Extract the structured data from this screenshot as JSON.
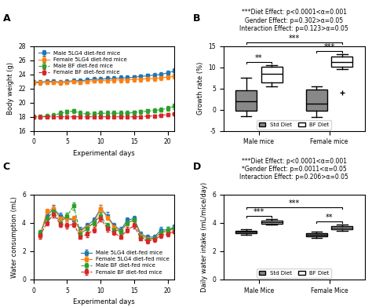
{
  "chart_data": [
    {
      "type": "line",
      "annotations": [
        {
          "text": "A"
        }
      ],
      "xlabel": "Experimental days",
      "ylabel": "Body weight (g)",
      "x": [
        0,
        1,
        2,
        3,
        4,
        5,
        6,
        7,
        8,
        9,
        10,
        11,
        12,
        13,
        14,
        15,
        16,
        17,
        18,
        19,
        20,
        21
      ],
      "series": [
        {
          "name": "Male 5LG4 diet-fed mice",
          "marker": "square",
          "line_style": "solid",
          "values": [
            22.9,
            22.9,
            23.0,
            23.0,
            22.9,
            23.0,
            23.1,
            23.1,
            23.2,
            23.3,
            23.3,
            23.4,
            23.4,
            23.5,
            23.5,
            23.6,
            23.7,
            23.8,
            23.9,
            24.0,
            24.2,
            24.5
          ],
          "errors": [
            0.3,
            0.3,
            0.3,
            0.3,
            0.3,
            0.3,
            0.3,
            0.3,
            0.3,
            0.3,
            0.3,
            0.3,
            0.3,
            0.3,
            0.3,
            0.3,
            0.3,
            0.3,
            0.3,
            0.3,
            0.3,
            0.4
          ]
        },
        {
          "name": "Female 5LG4 diet-fed mice",
          "marker": "square",
          "line_style": "solid",
          "values": [
            22.8,
            22.8,
            22.9,
            22.9,
            22.8,
            22.9,
            23.0,
            22.9,
            23.0,
            23.1,
            23.1,
            23.1,
            23.2,
            23.2,
            23.2,
            23.3,
            23.3,
            23.4,
            23.4,
            23.5,
            23.6,
            23.7
          ],
          "errors": [
            0.3,
            0.3,
            0.3,
            0.3,
            0.3,
            0.3,
            0.3,
            0.3,
            0.3,
            0.3,
            0.3,
            0.3,
            0.3,
            0.3,
            0.3,
            0.3,
            0.3,
            0.3,
            0.3,
            0.3,
            0.3,
            0.3
          ]
        },
        {
          "name": "Male BF diet-fed mice",
          "marker": "square",
          "line_style": "dashed",
          "values": [
            18.0,
            18.0,
            18.1,
            18.2,
            18.5,
            18.7,
            18.8,
            18.5,
            18.4,
            18.4,
            18.5,
            18.5,
            18.5,
            18.5,
            18.5,
            18.6,
            18.7,
            18.8,
            18.9,
            19.0,
            19.2,
            19.5
          ],
          "errors": [
            0.3,
            0.3,
            0.3,
            0.3,
            0.3,
            0.3,
            0.3,
            0.3,
            0.3,
            0.3,
            0.3,
            0.3,
            0.3,
            0.3,
            0.3,
            0.3,
            0.3,
            0.3,
            0.3,
            0.3,
            0.35,
            0.4
          ]
        },
        {
          "name": "Female BF diet-fed mice",
          "marker": "square",
          "line_style": "dashed",
          "values": [
            18.0,
            18.0,
            18.0,
            18.0,
            18.0,
            18.0,
            18.0,
            18.0,
            18.0,
            18.0,
            18.0,
            18.0,
            18.0,
            18.0,
            18.0,
            18.0,
            18.0,
            18.1,
            18.1,
            18.2,
            18.3,
            18.4
          ],
          "errors": [
            0.2,
            0.2,
            0.2,
            0.2,
            0.2,
            0.2,
            0.2,
            0.2,
            0.2,
            0.2,
            0.2,
            0.2,
            0.2,
            0.2,
            0.2,
            0.2,
            0.2,
            0.2,
            0.2,
            0.2,
            0.2,
            0.2
          ]
        }
      ],
      "xlim": [
        0,
        21
      ],
      "xticks": [
        0,
        5,
        10,
        15,
        20
      ],
      "ylim": [
        16,
        28
      ],
      "yticks": [
        16,
        18,
        20,
        22,
        24,
        26,
        28
      ],
      "legend": "upper left"
    },
    {
      "type": "box",
      "title": "***Diet Effect: p<0.0001<α=0.001\nGender Effect: p=0.302>α=0.05\nInteraction Effect: p=0.123>α=0.05",
      "ylabel": "Growth rate (%)",
      "categories": [
        "Male mice",
        "Female mice"
      ],
      "series": [
        {
          "name": "Std Diet",
          "color": "#888888",
          "boxes": [
            {
              "q1": -0.2,
              "median": 2.0,
              "q3": 4.5,
              "whislo": -1.5,
              "whishi": 7.5,
              "fliers": []
            },
            {
              "q1": -0.3,
              "median": 1.5,
              "q3": 4.8,
              "whislo": -1.8,
              "whishi": 5.5,
              "fliers": []
            }
          ]
        },
        {
          "name": "BF Diet",
          "color": "#ffffff",
          "boxes": [
            {
              "q1": 6.5,
              "median": 8.5,
              "q3": 10.2,
              "whislo": 5.5,
              "whishi": 10.5,
              "fliers": []
            },
            {
              "q1": 10.2,
              "median": 11.2,
              "q3": 12.5,
              "whislo": 9.5,
              "whishi": 13.0,
              "fliers": [
                4.0
              ]
            }
          ]
        }
      ],
      "annotations": [
        {
          "text": "B"
        },
        {
          "text": "**",
          "between": [
            {
              "category": "Male mice",
              "series": "Std Diet"
            },
            {
              "category": "Male mice",
              "series": "BF Diet"
            }
          ]
        },
        {
          "text": "***",
          "between": [
            {
              "category": "Female mice",
              "series": "Std Diet"
            },
            {
              "category": "Female mice",
              "series": "BF Diet"
            }
          ]
        },
        {
          "text": "***",
          "between": [
            {
              "category": "Male mice",
              "series": "Std Diet"
            },
            {
              "category": "Female mice",
              "series": "BF Diet"
            }
          ]
        }
      ],
      "ylim": [
        -5,
        15
      ],
      "yticks": [
        -5,
        0,
        5,
        10,
        15
      ],
      "legend": "lower center"
    },
    {
      "type": "line",
      "annotations": [
        {
          "text": "C"
        }
      ],
      "xlabel": "Experimental days",
      "ylabel": "Water consumption (mL)",
      "x": [
        1,
        2,
        3,
        4,
        5,
        6,
        7,
        8,
        9,
        10,
        11,
        12,
        13,
        14,
        15,
        16,
        17,
        18,
        19,
        20,
        21
      ],
      "series": [
        {
          "name": "Male 5LG4 diet-fed mice",
          "marker": "square",
          "line_style": "solid",
          "values": [
            3.2,
            4.5,
            5.0,
            4.5,
            4.3,
            4.2,
            3.5,
            3.8,
            4.2,
            5.0,
            4.5,
            3.8,
            3.5,
            4.2,
            4.3,
            3.2,
            3.0,
            3.0,
            3.5,
            3.5,
            3.7
          ],
          "errors": [
            0.2,
            0.25,
            0.25,
            0.2,
            0.2,
            0.2,
            0.2,
            0.2,
            0.2,
            0.25,
            0.25,
            0.2,
            0.2,
            0.2,
            0.2,
            0.2,
            0.15,
            0.15,
            0.2,
            0.2,
            0.2
          ]
        },
        {
          "name": "Female 5LG4 diet-fed mice",
          "marker": "square",
          "line_style": "solid",
          "values": [
            3.1,
            4.8,
            5.0,
            4.3,
            4.3,
            4.3,
            3.4,
            3.7,
            4.0,
            5.0,
            4.4,
            3.7,
            3.4,
            4.0,
            4.2,
            3.1,
            2.9,
            2.9,
            3.3,
            3.4,
            3.6
          ],
          "errors": [
            0.2,
            0.2,
            0.2,
            0.2,
            0.2,
            0.2,
            0.2,
            0.2,
            0.2,
            0.25,
            0.2,
            0.2,
            0.2,
            0.2,
            0.2,
            0.15,
            0.15,
            0.15,
            0.2,
            0.2,
            0.2
          ]
        },
        {
          "name": "Male BF diet-fed mice",
          "marker": "square",
          "line_style": "dashed",
          "values": [
            3.3,
            4.3,
            4.8,
            4.0,
            4.5,
            5.2,
            3.2,
            3.6,
            4.0,
            4.5,
            3.8,
            3.5,
            3.4,
            4.0,
            4.2,
            3.0,
            2.8,
            2.9,
            3.3,
            3.5,
            3.6
          ],
          "errors": [
            0.2,
            0.2,
            0.25,
            0.2,
            0.2,
            0.25,
            0.15,
            0.2,
            0.2,
            0.2,
            0.2,
            0.2,
            0.2,
            0.2,
            0.2,
            0.15,
            0.15,
            0.15,
            0.2,
            0.2,
            0.2
          ]
        },
        {
          "name": "Female BF diet-fed mice",
          "marker": "square",
          "line_style": "dashed",
          "values": [
            3.1,
            4.0,
            4.6,
            3.9,
            3.8,
            3.9,
            3.0,
            3.2,
            3.5,
            4.3,
            3.6,
            3.3,
            3.0,
            3.5,
            3.8,
            2.9,
            2.7,
            2.8,
            3.1,
            3.2,
            3.4
          ],
          "errors": [
            0.2,
            0.2,
            0.2,
            0.2,
            0.2,
            0.2,
            0.15,
            0.2,
            0.2,
            0.2,
            0.2,
            0.15,
            0.15,
            0.2,
            0.2,
            0.15,
            0.15,
            0.15,
            0.15,
            0.15,
            0.15
          ]
        }
      ],
      "xlim": [
        0,
        21
      ],
      "xticks": [
        0,
        5,
        10,
        15,
        20
      ],
      "ylim": [
        0,
        6
      ],
      "yticks": [
        0,
        2,
        4,
        6
      ],
      "legend": "lower right"
    },
    {
      "type": "box",
      "title": "***Diet Effect: p<0.0001<α=0.001\n*Gender Effect: p=0.0011<α=0.05\nInteraction Effect: p=0.206>α=0.05",
      "ylabel": "Daily water intake (mL/mice/day)",
      "categories": [
        "Male Mice",
        "Female Mice"
      ],
      "series": [
        {
          "name": "Std Diet",
          "color": "#888888",
          "boxes": [
            {
              "q1": 3.25,
              "median": 3.35,
              "q3": 3.45,
              "whislo": 3.15,
              "whishi": 3.55,
              "fliers": []
            },
            {
              "q1": 3.05,
              "median": 3.15,
              "q3": 3.25,
              "whislo": 2.95,
              "whishi": 3.35,
              "fliers": []
            }
          ]
        },
        {
          "name": "BF Diet",
          "color": "#ffffff",
          "boxes": [
            {
              "q1": 3.95,
              "median": 4.05,
              "q3": 4.15,
              "whislo": 3.85,
              "whishi": 4.25,
              "fliers": []
            },
            {
              "q1": 3.55,
              "median": 3.65,
              "q3": 3.75,
              "whislo": 3.45,
              "whishi": 3.85,
              "fliers": []
            }
          ]
        }
      ],
      "annotations": [
        {
          "text": "D"
        },
        {
          "text": "***",
          "between": [
            {
              "category": "Male Mice",
              "series": "Std Diet"
            },
            {
              "category": "Male Mice",
              "series": "BF Diet"
            }
          ]
        },
        {
          "text": "**",
          "between": [
            {
              "category": "Female Mice",
              "series": "Std Diet"
            },
            {
              "category": "Female Mice",
              "series": "BF Diet"
            }
          ]
        },
        {
          "text": "***",
          "between": [
            {
              "category": "Male Mice",
              "series": "Std Diet"
            },
            {
              "category": "Female Mice",
              "series": "BF Diet"
            }
          ]
        }
      ],
      "ylim": [
        0,
        6
      ],
      "yticks": [
        0,
        2,
        4,
        6
      ],
      "legend": "lower center"
    }
  ]
}
